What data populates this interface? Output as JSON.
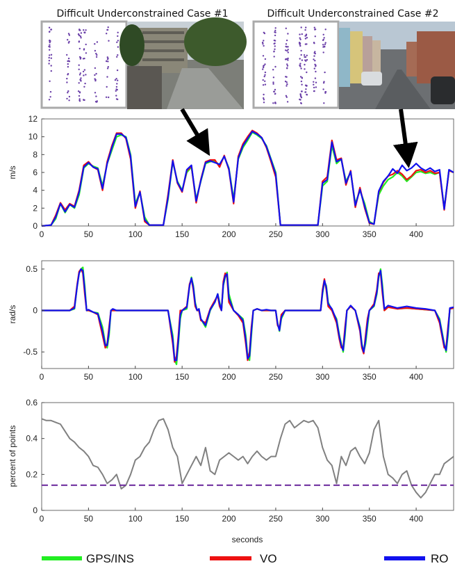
{
  "cases": [
    {
      "title": "Difficult Underconstrained Case #1",
      "scene": "street with building and trees"
    },
    {
      "title": "Difficult Underconstrained Case #2",
      "scene": "terraced houses street with parked cars"
    }
  ],
  "colors": {
    "gps": "#22ee22",
    "vo": "#ee1111",
    "ro": "#1111ee",
    "percent": "#808080",
    "threshold": "#7030a0",
    "scatter": "#6a3fa8"
  },
  "legend": [
    {
      "label": "GPS/INS",
      "color": "#22ee22"
    },
    {
      "label": "VO",
      "color": "#ee1111"
    },
    {
      "label": "RO",
      "color": "#1111ee"
    }
  ],
  "chart_data": [
    {
      "type": "line",
      "ylabel": "m/s",
      "xlim": [
        0,
        440
      ],
      "ylim": [
        0,
        12
      ],
      "yticks": [
        "0",
        "2",
        "4",
        "6",
        "8",
        "10",
        "12"
      ],
      "xticks": [
        "0",
        "50",
        "100",
        "150",
        "200",
        "250",
        "300",
        "350",
        "400"
      ],
      "x": [
        0,
        10,
        15,
        20,
        25,
        30,
        35,
        40,
        45,
        50,
        55,
        60,
        65,
        70,
        75,
        80,
        85,
        90,
        95,
        100,
        105,
        110,
        115,
        120,
        125,
        130,
        135,
        140,
        145,
        150,
        155,
        160,
        165,
        170,
        175,
        180,
        185,
        190,
        195,
        200,
        205,
        210,
        215,
        220,
        225,
        230,
        235,
        240,
        245,
        250,
        255,
        260,
        270,
        280,
        290,
        295,
        300,
        305,
        310,
        315,
        320,
        325,
        330,
        335,
        340,
        345,
        350,
        355,
        360,
        365,
        370,
        375,
        380,
        385,
        390,
        395,
        400,
        405,
        410,
        415,
        420,
        425,
        430,
        435,
        440
      ],
      "series": [
        {
          "name": "GPS/INS",
          "values": [
            0,
            0.1,
            0.8,
            2.5,
            1.5,
            2.4,
            2.0,
            3.5,
            6.5,
            7.0,
            6.7,
            6.5,
            4.5,
            7.0,
            8.5,
            10.0,
            10.2,
            10.0,
            8.0,
            2.5,
            3.8,
            1.0,
            0.1,
            0.1,
            0.1,
            0.1,
            3.0,
            7.2,
            5.0,
            4.0,
            6.0,
            6.6,
            3.0,
            5.0,
            7.0,
            7.2,
            7.3,
            6.8,
            7.8,
            6.5,
            3.0,
            7.5,
            8.8,
            9.6,
            10.5,
            10.2,
            9.8,
            9.0,
            7.5,
            6.0,
            0.1,
            0.1,
            0.1,
            0.1,
            0.1,
            0.1,
            4.5,
            5.0,
            9.0,
            7.0,
            7.5,
            5.0,
            6.0,
            2.5,
            4.0,
            2.5,
            0.5,
            0.2,
            3.5,
            4.5,
            5.2,
            5.5,
            6.0,
            5.6,
            5.0,
            5.5,
            6.0,
            6.1,
            5.9,
            6.0,
            5.8,
            6.0,
            2.0,
            6.2,
            6.0
          ]
        },
        {
          "name": "VO",
          "values": [
            0,
            0.1,
            1.2,
            2.6,
            1.8,
            2.5,
            2.2,
            4.0,
            6.8,
            7.2,
            6.6,
            6.3,
            4.0,
            7.2,
            9.0,
            10.4,
            10.4,
            9.8,
            7.5,
            2.0,
            3.9,
            0.5,
            0.1,
            0.1,
            0.1,
            0.1,
            3.5,
            7.4,
            4.8,
            3.8,
            6.2,
            6.7,
            2.6,
            5.2,
            7.2,
            7.4,
            7.4,
            6.6,
            7.9,
            6.3,
            2.5,
            7.8,
            9.2,
            10.0,
            10.7,
            10.4,
            9.9,
            8.8,
            7.2,
            5.5,
            0.1,
            0.1,
            0.1,
            0.1,
            0.1,
            0.1,
            5.0,
            5.5,
            9.6,
            7.4,
            7.6,
            4.6,
            6.2,
            2.1,
            4.3,
            2.0,
            0.3,
            0.2,
            3.8,
            4.9,
            5.6,
            5.8,
            6.2,
            5.8,
            5.2,
            5.6,
            6.2,
            6.3,
            6.0,
            6.2,
            5.9,
            6.0,
            1.8,
            6.2,
            6.0
          ]
        },
        {
          "name": "RO",
          "values": [
            0,
            0.1,
            1.0,
            2.5,
            1.6,
            2.4,
            2.1,
            3.8,
            6.6,
            7.1,
            6.6,
            6.4,
            4.2,
            7.0,
            8.8,
            10.3,
            10.3,
            9.9,
            7.8,
            2.2,
            3.8,
            0.7,
            0.1,
            0.1,
            0.1,
            0.1,
            3.2,
            7.3,
            4.9,
            3.9,
            6.3,
            6.8,
            2.8,
            5.1,
            7.1,
            7.3,
            7.1,
            6.9,
            7.8,
            6.4,
            2.7,
            7.6,
            9.0,
            9.8,
            10.6,
            10.3,
            9.9,
            8.9,
            7.4,
            5.8,
            0.1,
            0.1,
            0.1,
            0.1,
            0.1,
            0.1,
            4.8,
            5.2,
            9.4,
            7.2,
            7.5,
            4.8,
            6.1,
            2.3,
            4.1,
            2.2,
            0.4,
            0.2,
            3.9,
            5.0,
            5.6,
            6.4,
            5.9,
            6.8,
            6.2,
            6.5,
            7.0,
            6.5,
            6.2,
            6.5,
            6.1,
            6.3,
            1.9,
            6.3,
            6.0
          ]
        }
      ]
    },
    {
      "type": "line",
      "ylabel": "rad/s",
      "xlim": [
        0,
        440
      ],
      "ylim": [
        -0.7,
        0.6
      ],
      "yticks": [
        "-0.5",
        "0",
        "0.5"
      ],
      "xticks": [
        "0",
        "50",
        "100",
        "150",
        "200",
        "250",
        "300",
        "350",
        "400"
      ],
      "x": [
        0,
        30,
        35,
        38,
        40,
        42,
        44,
        46,
        48,
        50,
        55,
        60,
        65,
        68,
        70,
        72,
        74,
        76,
        80,
        90,
        100,
        110,
        120,
        130,
        135,
        140,
        142,
        144,
        146,
        148,
        150,
        155,
        158,
        160,
        162,
        164,
        166,
        168,
        170,
        175,
        180,
        185,
        188,
        190,
        192,
        194,
        196,
        198,
        200,
        205,
        210,
        215,
        218,
        220,
        222,
        224,
        226,
        230,
        235,
        240,
        245,
        250,
        252,
        254,
        256,
        260,
        270,
        280,
        290,
        295,
        298,
        300,
        302,
        304,
        306,
        310,
        315,
        318,
        320,
        322,
        324,
        326,
        330,
        335,
        340,
        342,
        344,
        346,
        348,
        350,
        355,
        358,
        360,
        362,
        364,
        366,
        370,
        380,
        390,
        400,
        410,
        420,
        425,
        430,
        432,
        434,
        436,
        440
      ],
      "series": [
        {
          "name": "GPS/INS",
          "values": [
            0,
            0,
            0.02,
            0.3,
            0.45,
            0.5,
            0.52,
            0.3,
            0,
            0,
            -0.02,
            -0.03,
            -0.2,
            -0.4,
            -0.45,
            -0.3,
            0,
            0,
            0,
            0,
            0,
            0,
            0,
            0,
            0,
            -0.3,
            -0.6,
            -0.65,
            -0.4,
            -0.1,
            0,
            0.02,
            0.3,
            0.4,
            0.3,
            0.1,
            0,
            0,
            -0.1,
            -0.2,
            0,
            0.1,
            0.2,
            0.1,
            0,
            0.3,
            0.4,
            0.46,
            0.2,
            0,
            -0.05,
            -0.1,
            -0.3,
            -0.55,
            -0.6,
            -0.3,
            0,
            0.02,
            0,
            0,
            0,
            0,
            -0.15,
            -0.25,
            -0.1,
            0,
            0,
            0,
            0,
            0,
            0,
            0.2,
            0.35,
            0.3,
            0.1,
            0,
            -0.1,
            -0.3,
            -0.4,
            -0.5,
            -0.3,
            0,
            0.05,
            0,
            -0.2,
            -0.4,
            -0.5,
            -0.4,
            -0.2,
            0,
            0.05,
            0.2,
            0.4,
            0.5,
            0.3,
            0,
            0.05,
            0.02,
            0.03,
            0.02,
            0.01,
            0,
            -0.1,
            -0.4,
            -0.5,
            -0.3,
            0.02,
            0.03
          ]
        },
        {
          "name": "VO",
          "values": [
            0,
            0,
            0.05,
            0.32,
            0.47,
            0.5,
            0.45,
            0.2,
            0,
            0,
            -0.02,
            -0.05,
            -0.3,
            -0.45,
            -0.4,
            -0.2,
            0,
            0,
            0,
            0,
            0,
            0,
            0,
            0,
            0,
            -0.4,
            -0.62,
            -0.55,
            -0.3,
            0,
            0,
            0.05,
            0.32,
            0.38,
            0.25,
            0.05,
            0,
            0,
            -0.12,
            -0.15,
            0.02,
            0.12,
            0.18,
            0.05,
            0,
            0.35,
            0.45,
            0.4,
            0.1,
            0,
            -0.06,
            -0.15,
            -0.4,
            -0.6,
            -0.5,
            -0.2,
            0,
            0.02,
            0,
            0,
            0,
            0,
            -0.18,
            -0.22,
            -0.05,
            0,
            0,
            0,
            0,
            0,
            0,
            0.25,
            0.38,
            0.25,
            0.05,
            0,
            -0.15,
            -0.35,
            -0.45,
            -0.45,
            -0.2,
            0,
            0.05,
            0,
            -0.25,
            -0.45,
            -0.52,
            -0.3,
            -0.1,
            0,
            0.08,
            0.25,
            0.45,
            0.45,
            0.2,
            0,
            0.04,
            0.02,
            0.03,
            0.02,
            0.01,
            0,
            -0.15,
            -0.45,
            -0.45,
            -0.2,
            0.02,
            0.03
          ]
        },
        {
          "name": "RO",
          "values": [
            0,
            0,
            0.03,
            0.3,
            0.45,
            0.5,
            0.48,
            0.25,
            0,
            0.01,
            -0.02,
            -0.04,
            -0.25,
            -0.42,
            -0.42,
            -0.25,
            0,
            0.02,
            0,
            0,
            0,
            0,
            0,
            0,
            0,
            -0.35,
            -0.6,
            -0.6,
            -0.35,
            -0.05,
            0,
            0.04,
            0.3,
            0.39,
            0.28,
            0.08,
            0,
            0.02,
            -0.1,
            -0.18,
            0.01,
            0.1,
            0.2,
            0.08,
            0,
            0.32,
            0.42,
            0.44,
            0.15,
            0,
            -0.05,
            -0.12,
            -0.35,
            -0.58,
            -0.55,
            -0.25,
            0,
            0.02,
            0,
            0.01,
            0,
            0,
            -0.16,
            -0.24,
            -0.08,
            0,
            0,
            0,
            0,
            0,
            0,
            0.22,
            0.36,
            0.28,
            0.08,
            0.02,
            -0.12,
            -0.32,
            -0.42,
            -0.48,
            -0.25,
            0,
            0.06,
            0,
            -0.22,
            -0.42,
            -0.5,
            -0.35,
            -0.15,
            0,
            0.06,
            0.22,
            0.42,
            0.48,
            0.25,
            0.02,
            0.06,
            0.03,
            0.05,
            0.03,
            0.02,
            0,
            -0.12,
            -0.42,
            -0.48,
            -0.25,
            0.03,
            0.04
          ]
        }
      ]
    },
    {
      "type": "line",
      "ylabel": "percent of points",
      "xlabel": "seconds",
      "xlim": [
        0,
        440
      ],
      "ylim": [
        0,
        0.6
      ],
      "yticks": [
        "0",
        "0.2",
        "0.4",
        "0.6"
      ],
      "xticks": [
        "0",
        "50",
        "100",
        "150",
        "200",
        "250",
        "300",
        "350",
        "400"
      ],
      "threshold": 0.14,
      "x": [
        0,
        5,
        10,
        15,
        20,
        25,
        30,
        35,
        40,
        45,
        50,
        55,
        60,
        65,
        70,
        75,
        80,
        85,
        90,
        95,
        100,
        105,
        110,
        115,
        120,
        125,
        130,
        135,
        140,
        145,
        150,
        155,
        160,
        165,
        170,
        175,
        180,
        185,
        190,
        195,
        200,
        205,
        210,
        215,
        220,
        225,
        230,
        235,
        240,
        245,
        250,
        255,
        260,
        265,
        270,
        275,
        280,
        285,
        290,
        295,
        300,
        305,
        310,
        315,
        320,
        325,
        330,
        335,
        340,
        345,
        350,
        355,
        360,
        365,
        370,
        375,
        380,
        385,
        390,
        395,
        400,
        405,
        410,
        415,
        420,
        425,
        430,
        435,
        440
      ],
      "series": [
        {
          "name": "percent of points",
          "values": [
            0.51,
            0.5,
            0.5,
            0.49,
            0.48,
            0.44,
            0.4,
            0.38,
            0.35,
            0.33,
            0.3,
            0.25,
            0.24,
            0.2,
            0.15,
            0.17,
            0.2,
            0.12,
            0.14,
            0.2,
            0.28,
            0.3,
            0.35,
            0.38,
            0.45,
            0.5,
            0.51,
            0.45,
            0.35,
            0.3,
            0.15,
            0.2,
            0.25,
            0.3,
            0.25,
            0.35,
            0.22,
            0.2,
            0.28,
            0.3,
            0.32,
            0.3,
            0.28,
            0.3,
            0.26,
            0.3,
            0.33,
            0.3,
            0.28,
            0.3,
            0.3,
            0.4,
            0.48,
            0.5,
            0.46,
            0.48,
            0.5,
            0.49,
            0.5,
            0.46,
            0.35,
            0.28,
            0.25,
            0.15,
            0.3,
            0.25,
            0.33,
            0.35,
            0.3,
            0.26,
            0.32,
            0.45,
            0.5,
            0.3,
            0.2,
            0.18,
            0.15,
            0.2,
            0.22,
            0.14,
            0.1,
            0.07,
            0.1,
            0.15,
            0.2,
            0.2,
            0.26,
            0.28,
            0.3
          ]
        }
      ]
    }
  ]
}
